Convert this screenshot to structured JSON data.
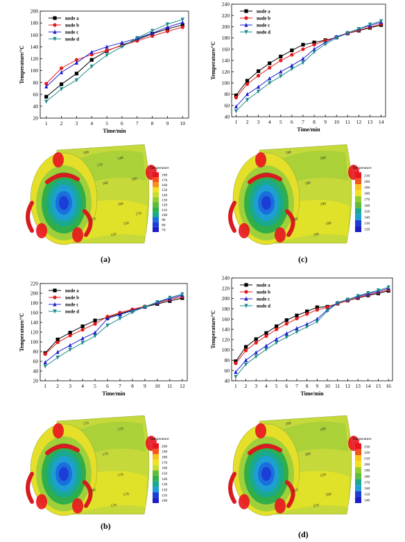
{
  "panels": [
    {
      "label": "(a)",
      "chart_data": {
        "type": "line",
        "xlabel": "Time/min",
        "ylabel": "Temperature/°C",
        "x": [
          1,
          2,
          3,
          4,
          5,
          6,
          7,
          8,
          9,
          10
        ],
        "xlim": [
          0.6,
          10.4
        ],
        "ylim": [
          20,
          200
        ],
        "xticks": [
          1,
          2,
          3,
          4,
          5,
          6,
          7,
          8,
          9,
          10
        ],
        "yticks": [
          20,
          40,
          60,
          80,
          100,
          120,
          140,
          160,
          180,
          200
        ],
        "legend_position": "top-left",
        "series": [
          {
            "name": "node a",
            "color": "#000000",
            "marker": "square",
            "values": [
              56,
              77,
              95,
              118,
              133,
              143,
              152,
              162,
              170,
              177
            ]
          },
          {
            "name": "node b",
            "color": "#e41a1c",
            "marker": "circle",
            "values": [
              78,
              104,
              118,
              127,
              134,
              142,
              150,
              158,
              166,
              173
            ]
          },
          {
            "name": "node c",
            "color": "#1f1fcf",
            "marker": "triangle",
            "values": [
              73,
              97,
              113,
              131,
              140,
              147,
              154,
              163,
              173,
              181
            ]
          },
          {
            "name": "node d",
            "color": "#1b8a8a",
            "marker": "down-triangle",
            "values": [
              48,
              69,
              84,
              107,
              126,
              140,
              155,
              167,
              178,
              186
            ]
          }
        ]
      },
      "colorbar": {
        "title": "Temperature",
        "ticks": [
          "180",
          "170",
          "160",
          "150",
          "140",
          "130",
          "120",
          "110",
          "100",
          "90",
          "80",
          "70"
        ]
      },
      "contour_labels": [
        "140",
        "160",
        "160",
        "170",
        "150",
        "110",
        "100",
        "160",
        "170",
        "170"
      ]
    },
    {
      "label": "(c)",
      "chart_data": {
        "type": "line",
        "xlabel": "Time/min",
        "ylabel": "Temperature/°C",
        "x": [
          1,
          2,
          3,
          4,
          5,
          6,
          7,
          8,
          9,
          10,
          11,
          12,
          13,
          14
        ],
        "xlim": [
          0.6,
          14.4
        ],
        "ylim": [
          40,
          240
        ],
        "xticks": [
          1,
          2,
          3,
          4,
          5,
          6,
          7,
          8,
          9,
          10,
          11,
          12,
          13,
          14
        ],
        "yticks": [
          40,
          60,
          80,
          100,
          120,
          140,
          160,
          180,
          200,
          220,
          240
        ],
        "legend_position": "top-left",
        "series": [
          {
            "name": "node a",
            "color": "#000000",
            "marker": "square",
            "values": [
              78,
              104,
              121,
              135,
              147,
              158,
              168,
              172,
              176,
              181,
              188,
              193,
              198,
              203
            ]
          },
          {
            "name": "node b",
            "color": "#e41a1c",
            "marker": "circle",
            "values": [
              74,
              98,
              113,
              127,
              140,
              150,
              160,
              168,
              175,
              181,
              188,
              194,
              199,
              205
            ]
          },
          {
            "name": "node c",
            "color": "#1f1fcf",
            "marker": "triangle",
            "values": [
              58,
              80,
              93,
              108,
              120,
              131,
              143,
              160,
              172,
              182,
              189,
              196,
              202,
              208
            ]
          },
          {
            "name": "node d",
            "color": "#1b8a8a",
            "marker": "down-triangle",
            "values": [
              50,
              70,
              85,
              100,
              112,
              125,
              136,
              155,
              169,
              180,
              189,
              196,
              204,
              210
            ]
          }
        ]
      },
      "colorbar": {
        "title": "Temperature",
        "ticks": [
          "210",
          "200",
          "190",
          "180",
          "170",
          "160",
          "150",
          "140",
          "130",
          "120"
        ]
      },
      "contour_labels": [
        "180",
        "180",
        "190",
        "180",
        "190",
        "190",
        "180"
      ]
    },
    {
      "label": "(b)",
      "chart_data": {
        "type": "line",
        "xlabel": "Time/min",
        "ylabel": "Temperature/°C",
        "x": [
          1,
          2,
          3,
          4,
          5,
          6,
          7,
          8,
          9,
          10,
          11,
          12
        ],
        "xlim": [
          0.6,
          12.4
        ],
        "ylim": [
          20,
          220
        ],
        "xticks": [
          1,
          2,
          3,
          4,
          5,
          6,
          7,
          8,
          9,
          10,
          11,
          12
        ],
        "yticks": [
          20,
          40,
          60,
          80,
          100,
          120,
          140,
          160,
          180,
          200,
          220
        ],
        "legend_position": "top-left",
        "series": [
          {
            "name": "node a",
            "color": "#000000",
            "marker": "square",
            "values": [
              77,
              105,
              119,
              132,
              144,
              150,
              158,
              165,
              172,
              178,
              184,
              190
            ]
          },
          {
            "name": "node b",
            "color": "#e41a1c",
            "marker": "circle",
            "values": [
              75,
              99,
              113,
              125,
              137,
              152,
              160,
              167,
              173,
              180,
              187,
              193
            ]
          },
          {
            "name": "node c",
            "color": "#1f1fcf",
            "marker": "triangle",
            "values": [
              58,
              79,
              93,
              107,
              119,
              148,
              156,
              164,
              172,
              181,
              189,
              196
            ]
          },
          {
            "name": "node d",
            "color": "#1b8a8a",
            "marker": "down-triangle",
            "values": [
              50,
              68,
              84,
              98,
              112,
              134,
              148,
              161,
              172,
              182,
              191,
              198
            ]
          }
        ]
      },
      "colorbar": {
        "title": "Temperature",
        "ticks": [
          "200",
          "190",
          "180",
          "170",
          "160",
          "150",
          "140",
          "130",
          "120",
          "110",
          "100"
        ]
      },
      "contour_labels": [
        "170",
        "170",
        "170",
        "180",
        "170",
        "170",
        "170"
      ]
    },
    {
      "label": "(d)",
      "chart_data": {
        "type": "line",
        "xlabel": "Time/min",
        "ylabel": "Temperature/°C",
        "x": [
          1,
          2,
          3,
          4,
          5,
          6,
          7,
          8,
          9,
          10,
          11,
          12,
          13,
          14,
          15,
          16
        ],
        "xlim": [
          0.6,
          16.4
        ],
        "ylim": [
          40,
          240
        ],
        "xticks": [
          1,
          2,
          3,
          4,
          5,
          6,
          7,
          8,
          9,
          10,
          11,
          12,
          13,
          14,
          15,
          16
        ],
        "yticks": [
          40,
          60,
          80,
          100,
          120,
          140,
          160,
          180,
          200,
          220,
          240
        ],
        "legend_position": "top-left",
        "series": [
          {
            "name": "node a",
            "color": "#000000",
            "marker": "square",
            "values": [
              78,
              106,
              121,
              133,
              146,
              158,
              167,
              175,
              183,
              184,
              190,
              196,
              201,
              206,
              210,
              215
            ]
          },
          {
            "name": "node b",
            "color": "#e41a1c",
            "marker": "circle",
            "values": [
              74,
              99,
              114,
              127,
              140,
              151,
              161,
              170,
              178,
              183,
              190,
              196,
              202,
              207,
              212,
              217
            ]
          },
          {
            "name": "node c",
            "color": "#1f1fcf",
            "marker": "triangle",
            "values": [
              57,
              80,
              95,
              108,
              121,
              132,
              142,
              150,
              160,
              178,
              192,
              198,
              204,
              209,
              214,
              220
            ]
          },
          {
            "name": "node d",
            "color": "#1b8a8a",
            "marker": "down-triangle",
            "values": [
              48,
              72,
              87,
              101,
              114,
              125,
              135,
              145,
              155,
              176,
              191,
              198,
              205,
              211,
              216,
              222
            ]
          }
        ]
      },
      "colorbar": {
        "title": "Temperature",
        "ticks": [
          "230",
          "220",
          "210",
          "200",
          "190",
          "180",
          "170",
          "160",
          "150",
          "140"
        ]
      },
      "contour_labels": [
        "200",
        "200",
        "220",
        "210",
        "200",
        "210",
        "200"
      ]
    }
  ]
}
